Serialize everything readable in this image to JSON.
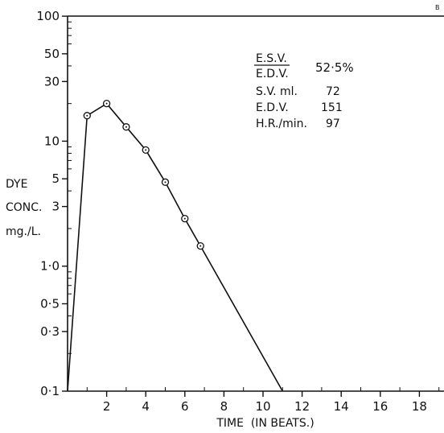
{
  "corner_mark": "B",
  "chart_data": {
    "type": "line",
    "xlabel": "TIME  (IN BEATS.)",
    "ylabel_lines": [
      "DYE",
      "CONC.",
      "mg./L."
    ],
    "yscale": "log",
    "xlim": [
      0,
      20
    ],
    "ylim": [
      0.1,
      100
    ],
    "x_ticks": [
      2,
      4,
      6,
      8,
      10,
      12,
      14,
      16,
      18
    ],
    "x_tick_labels": [
      "2",
      "4",
      "6",
      "8",
      "10",
      "12",
      "14",
      "16",
      "18"
    ],
    "y_ticks": [
      0.1,
      0.3,
      0.5,
      1,
      3,
      5,
      10,
      30,
      50,
      100
    ],
    "y_tick_labels": [
      "0·1",
      "0·3",
      "0·5",
      "1·0",
      "3",
      "5",
      "10",
      "30",
      "50",
      "100"
    ],
    "series": [
      {
        "line_x": [
          0,
          1,
          2,
          3,
          4,
          5,
          6,
          6.8,
          11
        ],
        "line_y": [
          0.1,
          16,
          20,
          13,
          8.5,
          4.7,
          2.4,
          1.45,
          0.1
        ],
        "points_x": [
          1,
          2,
          3,
          4,
          5,
          6,
          6.8
        ],
        "points_y": [
          16,
          20,
          13,
          8.5,
          4.7,
          2.4,
          1.45
        ]
      }
    ],
    "annotations": {
      "ratio_numerator": "E.S.V.",
      "ratio_denominator": "E.D.V.",
      "ratio_value": "52·5%",
      "rows": [
        {
          "label": "S.V. ml.",
          "value": "72"
        },
        {
          "label": "E.D.V.",
          "value": "151"
        },
        {
          "label": "H.R./min.",
          "value": "97"
        }
      ]
    },
    "grid": false,
    "legend": "none"
  }
}
